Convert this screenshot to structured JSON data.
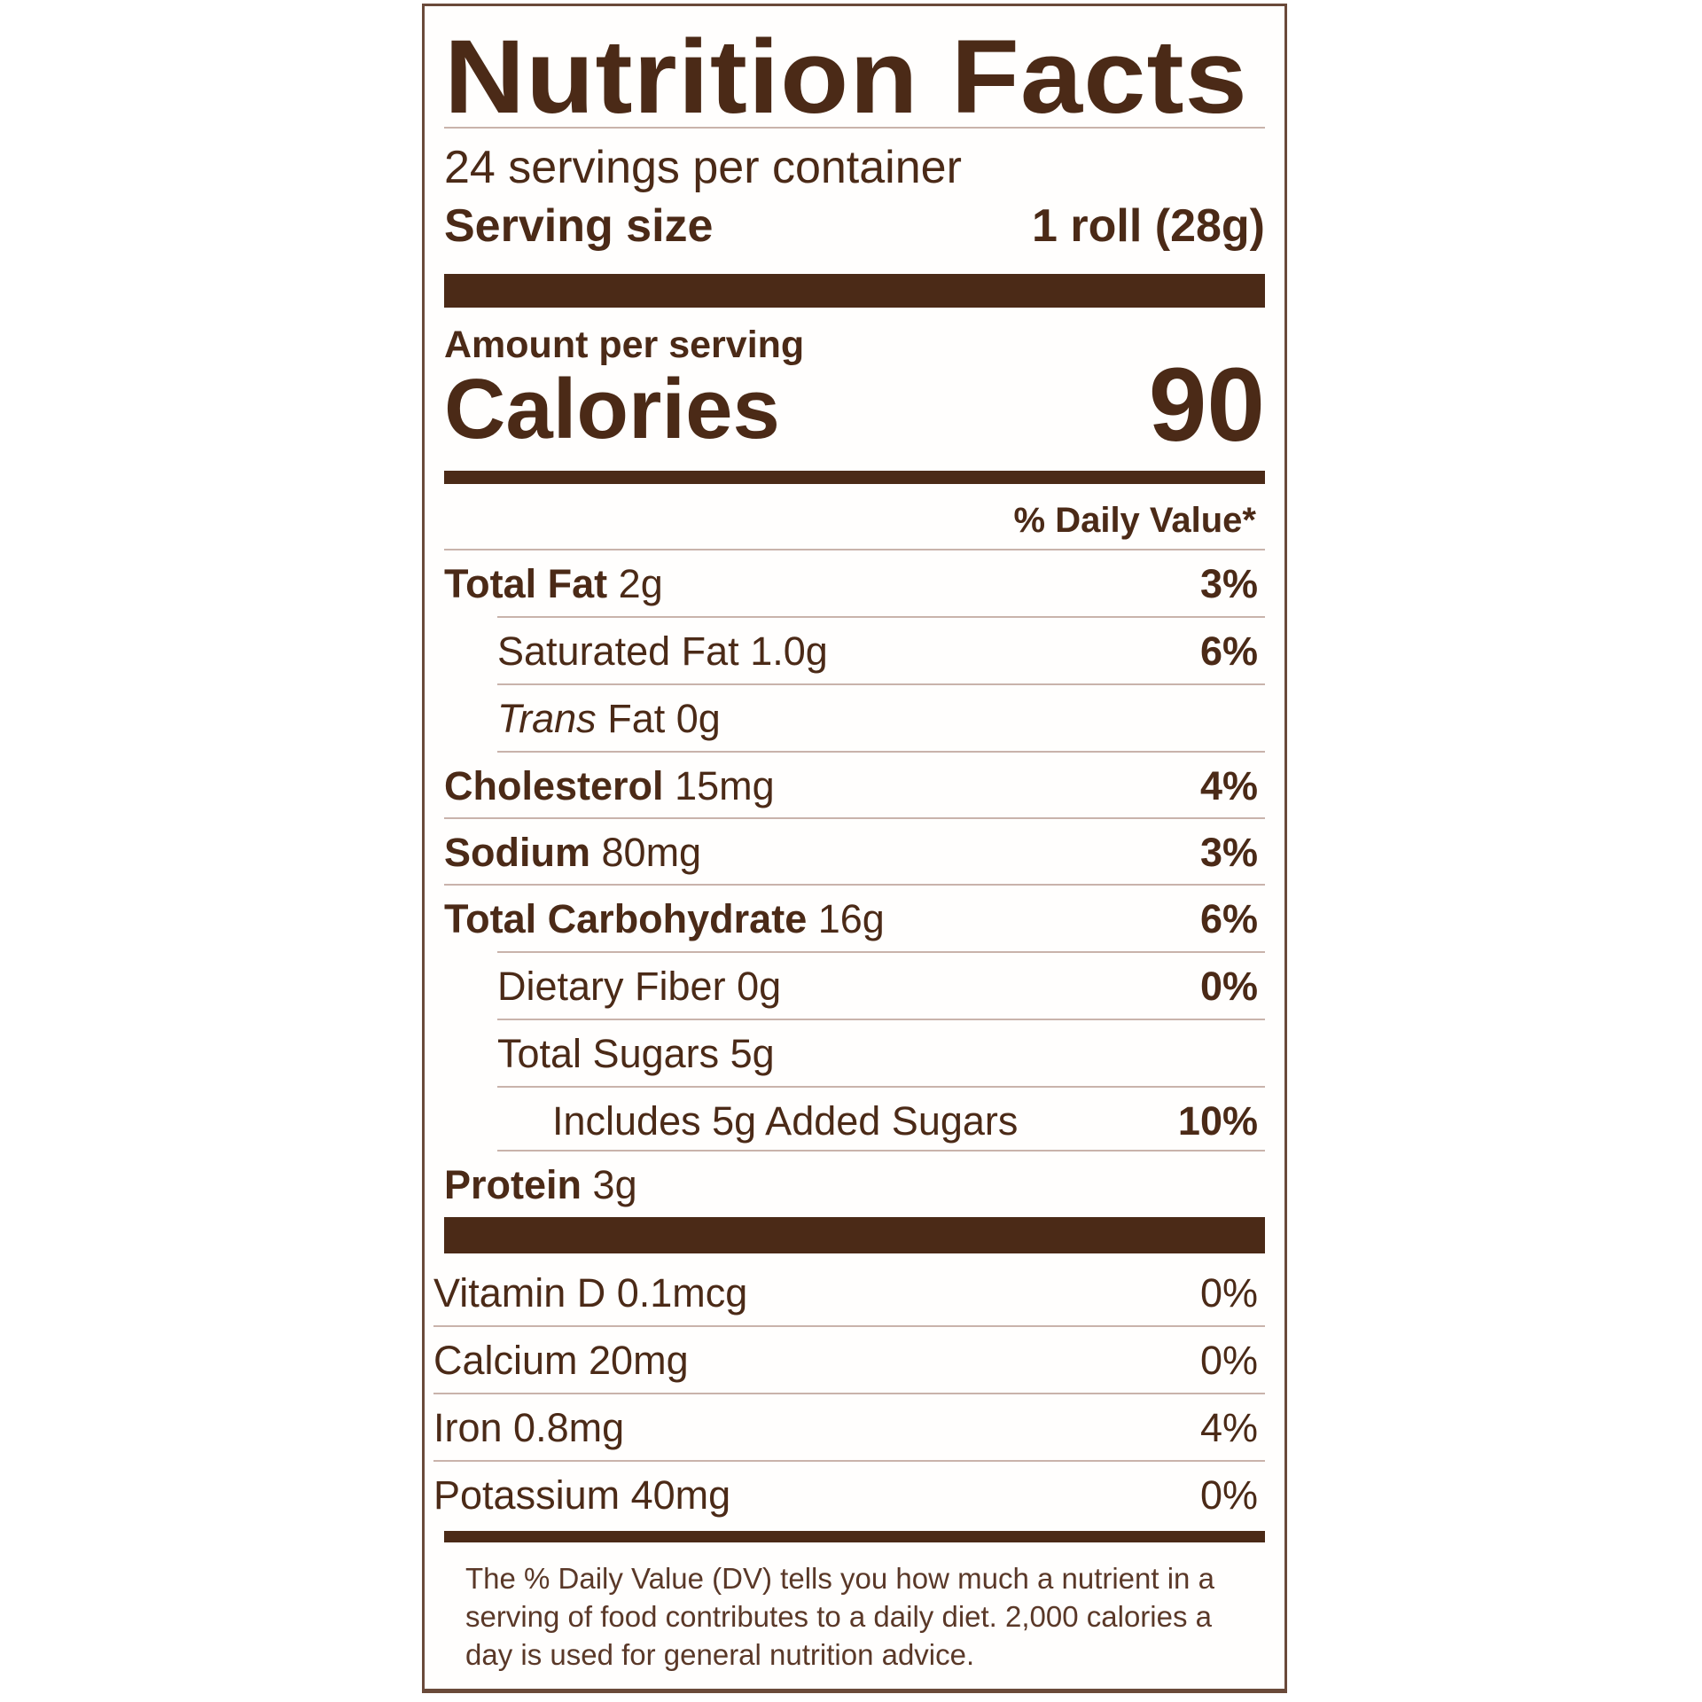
{
  "title": "Nutrition Facts",
  "servings_per_container": "24 servings per container",
  "serving_size": {
    "label": "Serving size",
    "value": "1 roll (28g)"
  },
  "amount_per_serving": "Amount per serving",
  "calories": {
    "label": "Calories",
    "value": "90"
  },
  "daily_value_header": "% Daily Value*",
  "nutrients": [
    {
      "name": "Total Fat",
      "amount": "2g",
      "dv": "3%",
      "bold": true,
      "indent": 0
    },
    {
      "name": "Saturated Fat",
      "amount": "1.0g",
      "dv": "6%",
      "bold": false,
      "indent": 1
    },
    {
      "name": "Trans",
      "name_suffix": "Fat",
      "amount": "0g",
      "dv": "",
      "bold": false,
      "indent": 1,
      "italic_name": true
    },
    {
      "name": "Cholesterol",
      "amount": "15mg",
      "dv": "4%",
      "bold": true,
      "indent": 0
    },
    {
      "name": "Sodium",
      "amount": "80mg",
      "dv": "3%",
      "bold": true,
      "indent": 0
    },
    {
      "name": "Total Carbohydrate",
      "amount": "16g",
      "dv": "6%",
      "bold": true,
      "indent": 0
    },
    {
      "name": "Dietary Fiber",
      "amount": "0g",
      "dv": "0%",
      "bold": false,
      "indent": 1
    },
    {
      "name": "Total Sugars",
      "amount": "5g",
      "dv": "",
      "bold": false,
      "indent": 1
    },
    {
      "name": "Includes 5g Added Sugars",
      "amount": "",
      "dv": "10%",
      "bold": false,
      "indent": 2
    },
    {
      "name": "Protein",
      "amount": "3g",
      "dv": "",
      "bold": true,
      "indent": 0
    }
  ],
  "vitamins": [
    {
      "name": "Vitamin D 0.1mcg",
      "dv": "0%"
    },
    {
      "name": "Calcium 20mg",
      "dv": "0%"
    },
    {
      "name": "Iron 0.8mg",
      "dv": "4%"
    },
    {
      "name": "Potassium 40mg",
      "dv": "0%"
    }
  ],
  "footnote": "The % Daily Value (DV) tells you how much a nutrient in a serving of food contributes to a daily diet. 2,000 calories a day is used for general nutrition advice.",
  "colors": {
    "ink": "#4b2a17",
    "background": "#ffffff"
  }
}
